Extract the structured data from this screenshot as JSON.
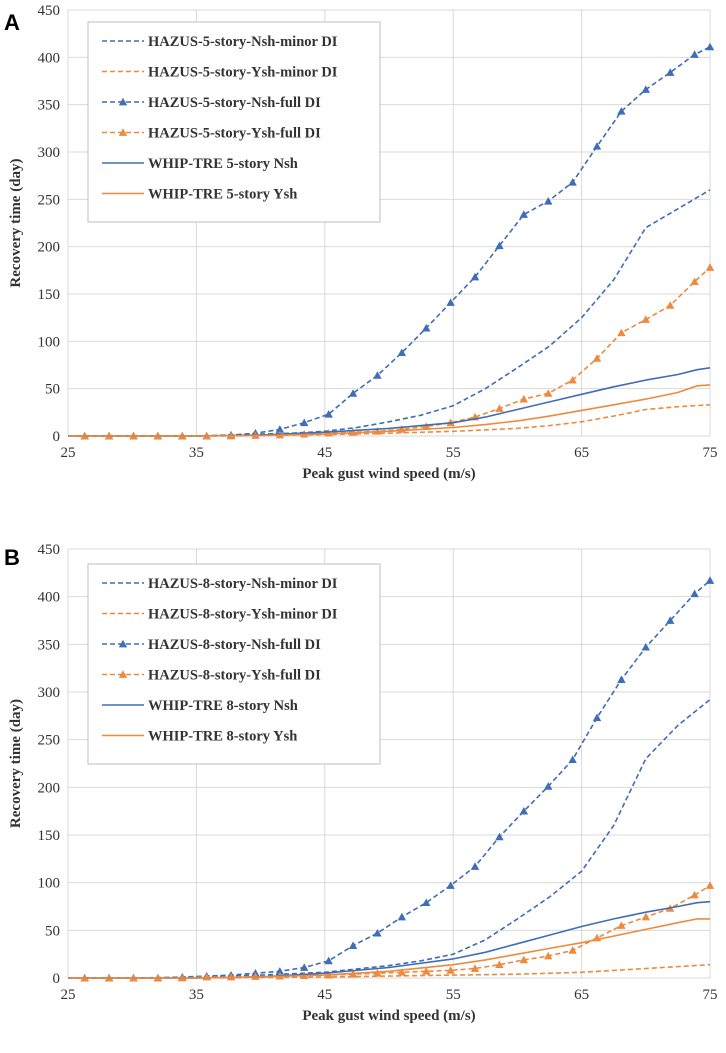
{
  "panels": [
    {
      "label": "A"
    },
    {
      "label": "B"
    }
  ],
  "colors": {
    "blue": "#3f6db6",
    "orange": "#ee8a3d",
    "grid": "#d9d9d9"
  },
  "chart_data": [
    {
      "type": "line",
      "title": "",
      "xlabel": "Peak gust wind speed (m/s)",
      "ylabel": "Recovery time (day)",
      "xlim": [
        25,
        75
      ],
      "ylim": [
        0,
        450
      ],
      "xticks": [
        25,
        35,
        45,
        55,
        65,
        75
      ],
      "yticks": [
        0,
        50,
        100,
        150,
        200,
        250,
        300,
        350,
        400,
        450
      ],
      "legend_position": "top-left",
      "series": [
        {
          "name": "HAZUS-5-story-Nsh-minor DI",
          "color": "blue",
          "style": "dashed",
          "marker": "none",
          "x": [
            25,
            30,
            35,
            37.5,
            40,
            42.5,
            45,
            47.5,
            50,
            52.5,
            55,
            57.5,
            60,
            62.5,
            65,
            67.5,
            70,
            72.5,
            75
          ],
          "y": [
            0,
            0,
            0,
            1,
            2,
            3,
            5,
            9,
            15,
            22,
            32,
            50,
            72,
            95,
            125,
            165,
            220,
            240,
            260
          ]
        },
        {
          "name": "HAZUS-5-story-Ysh-minor DI",
          "color": "orange",
          "style": "dashed",
          "marker": "none",
          "x": [
            25,
            35,
            40,
            45,
            50,
            55,
            60,
            62.5,
            65,
            67.5,
            70,
            72.5,
            75
          ],
          "y": [
            0,
            0,
            0.5,
            1.5,
            3,
            5,
            8,
            11,
            15,
            21,
            28,
            31,
            33
          ]
        },
        {
          "name": "HAZUS-5-story-Nsh-full DI",
          "color": "blue",
          "style": "dashed",
          "marker": "triangle",
          "x": [
            26.3,
            28.2,
            30.1,
            32,
            33.9,
            35.8,
            37.7,
            39.6,
            41.5,
            43.4,
            45.3,
            47.2,
            49.1,
            51,
            52.9,
            54.8,
            56.7,
            58.6,
            60.5,
            62.4,
            64.3,
            66.2,
            68.1,
            70,
            71.9,
            73.8,
            75
          ],
          "y": [
            0,
            0,
            0,
            0,
            0,
            0,
            1,
            3,
            7,
            14,
            23,
            45,
            64,
            88,
            114,
            141,
            168,
            201,
            234,
            248,
            268,
            306,
            343,
            366,
            384,
            403,
            411
          ]
        },
        {
          "name": "HAZUS-5-story-Ysh-full DI",
          "color": "orange",
          "style": "dashed",
          "marker": "triangle",
          "x": [
            26.3,
            28.2,
            30.1,
            32,
            33.9,
            35.8,
            37.7,
            39.6,
            41.5,
            43.4,
            45.3,
            47.2,
            49.1,
            51,
            52.9,
            54.8,
            56.7,
            58.6,
            60.5,
            62.4,
            64.3,
            66.2,
            68.1,
            70,
            71.9,
            73.8,
            75
          ],
          "y": [
            0,
            0,
            0,
            0,
            0,
            0,
            0,
            0.5,
            1,
            2,
            3,
            4,
            5,
            7,
            10,
            14,
            20,
            29,
            39,
            45,
            59,
            82,
            109,
            123,
            138,
            163,
            178
          ]
        },
        {
          "name": "WHIP-TRE 5-story Nsh",
          "color": "blue",
          "style": "solid",
          "marker": "none",
          "x": [
            25,
            35,
            40,
            45,
            50,
            55,
            57.5,
            60,
            62.5,
            65,
            67.5,
            70,
            72.5,
            74,
            75
          ],
          "y": [
            0,
            0,
            1,
            4,
            8,
            14,
            20,
            28,
            36,
            44,
            52,
            59,
            65,
            70,
            72
          ]
        },
        {
          "name": "WHIP-TRE 5-story Ysh",
          "color": "orange",
          "style": "solid",
          "marker": "none",
          "x": [
            25,
            35,
            40,
            45,
            50,
            55,
            57.5,
            60,
            62.5,
            65,
            67.5,
            70,
            72.5,
            74,
            75
          ],
          "y": [
            0,
            0,
            0.5,
            2,
            5,
            9,
            12,
            16,
            21,
            27,
            33,
            39,
            46,
            53,
            54
          ]
        }
      ]
    },
    {
      "type": "line",
      "title": "",
      "xlabel": "Peak gust wind speed (m/s)",
      "ylabel": "Recovery time (day)",
      "xlim": [
        25,
        75
      ],
      "ylim": [
        0,
        450
      ],
      "xticks": [
        25,
        35,
        45,
        55,
        65,
        75
      ],
      "yticks": [
        0,
        50,
        100,
        150,
        200,
        250,
        300,
        350,
        400,
        450
      ],
      "legend_position": "top-left",
      "series": [
        {
          "name": "HAZUS-8-story-Nsh-minor DI",
          "color": "blue",
          "style": "dashed",
          "marker": "none",
          "x": [
            25,
            30,
            35,
            40,
            45,
            50,
            52.5,
            55,
            57.5,
            60,
            62.5,
            65,
            67.5,
            70,
            72.5,
            75
          ],
          "y": [
            0,
            0,
            1,
            3,
            6,
            13,
            18,
            25,
            40,
            62,
            85,
            112,
            160,
            230,
            265,
            292
          ]
        },
        {
          "name": "HAZUS-8-story-Ysh-minor DI",
          "color": "orange",
          "style": "dashed",
          "marker": "none",
          "x": [
            25,
            35,
            45,
            55,
            60,
            65,
            70,
            75
          ],
          "y": [
            0,
            0,
            1,
            3,
            4,
            6,
            10,
            14
          ]
        },
        {
          "name": "HAZUS-8-story-Nsh-full DI",
          "color": "blue",
          "style": "dashed",
          "marker": "triangle",
          "x": [
            26.3,
            28.2,
            30.1,
            32,
            33.9,
            35.8,
            37.7,
            39.6,
            41.5,
            43.4,
            45.3,
            47.2,
            49.1,
            51,
            52.9,
            54.8,
            56.7,
            58.6,
            60.5,
            62.4,
            64.3,
            66.2,
            68.1,
            70,
            71.9,
            73.8,
            75
          ],
          "y": [
            0,
            0,
            0,
            0,
            1,
            2,
            3,
            5,
            7,
            11,
            18,
            34,
            47,
            64,
            79,
            97,
            117,
            148,
            175,
            201,
            229,
            273,
            313,
            347,
            375,
            403,
            417
          ]
        },
        {
          "name": "HAZUS-8-story-Ysh-full DI",
          "color": "orange",
          "style": "dashed",
          "marker": "triangle",
          "x": [
            26.3,
            28.2,
            30.1,
            32,
            33.9,
            35.8,
            37.7,
            39.6,
            41.5,
            43.4,
            45.3,
            47.2,
            49.1,
            51,
            52.9,
            54.8,
            56.7,
            58.6,
            60.5,
            62.4,
            64.3,
            66.2,
            68.1,
            70,
            71.9,
            73.8,
            75
          ],
          "y": [
            0,
            0,
            0,
            0,
            0,
            1,
            1,
            1.5,
            2,
            2.5,
            3,
            4,
            5,
            6,
            7,
            8,
            10,
            14,
            19,
            23,
            29,
            42,
            55,
            64,
            73,
            87,
            97
          ]
        },
        {
          "name": "WHIP-TRE 8-story Nsh",
          "color": "blue",
          "style": "solid",
          "marker": "none",
          "x": [
            25,
            35,
            40,
            45,
            50,
            55,
            57.5,
            60,
            62.5,
            65,
            67.5,
            70,
            72.5,
            74,
            75
          ],
          "y": [
            0,
            0,
            1,
            5,
            11,
            20,
            27,
            36,
            45,
            54,
            62,
            69,
            75,
            79,
            80
          ]
        },
        {
          "name": "WHIP-TRE 8-story Ysh",
          "color": "orange",
          "style": "solid",
          "marker": "none",
          "x": [
            25,
            35,
            40,
            45,
            50,
            55,
            57.5,
            60,
            62.5,
            65,
            67.5,
            70,
            72.5,
            74,
            75
          ],
          "y": [
            0,
            0,
            1,
            3,
            7,
            14,
            19,
            25,
            31,
            37,
            44,
            51,
            58,
            62,
            62
          ]
        }
      ]
    }
  ]
}
